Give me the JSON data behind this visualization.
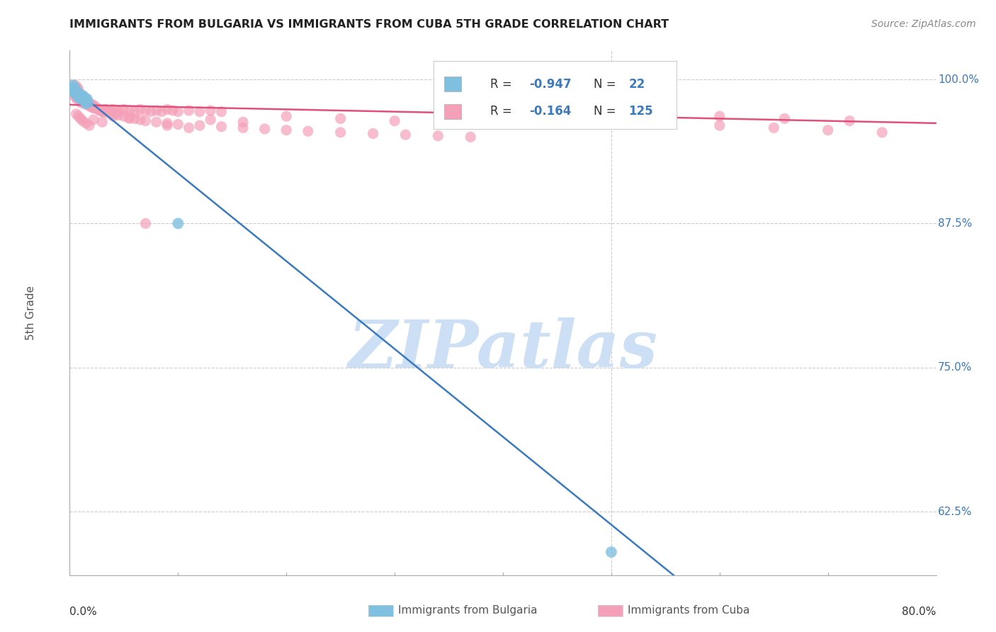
{
  "title": "IMMIGRANTS FROM BULGARIA VS IMMIGRANTS FROM CUBA 5TH GRADE CORRELATION CHART",
  "source": "Source: ZipAtlas.com",
  "ylabel": "5th Grade",
  "yticks": [
    0.625,
    0.75,
    0.875,
    1.0
  ],
  "ytick_labels": [
    "62.5%",
    "75.0%",
    "87.5%",
    "100.0%"
  ],
  "ymin": 0.57,
  "ymax": 1.025,
  "xmin": 0.0,
  "xmax": 0.8,
  "bulgaria_color": "#7fbfdf",
  "cuba_color": "#f4a0b8",
  "bulgaria_line_color": "#3a7abf",
  "cuba_line_color": "#e0507a",
  "bulgaria_R": -0.947,
  "bulgaria_N": 22,
  "cuba_R": -0.164,
  "cuba_N": 125,
  "watermark_text": "ZIPatlas",
  "watermark_color": "#ccdff5",
  "bulgaria_line_x0": 0.001,
  "bulgaria_line_y0": 0.994,
  "bulgaria_line_x1": 0.56,
  "bulgaria_line_y1": 0.568,
  "cuba_line_x0": 0.0,
  "cuba_line_y0": 0.978,
  "cuba_line_x1": 0.8,
  "cuba_line_y1": 0.962,
  "bulgaria_scatter_x": [
    0.003,
    0.004,
    0.004,
    0.005,
    0.005,
    0.006,
    0.006,
    0.007,
    0.007,
    0.008,
    0.008,
    0.009,
    0.01,
    0.011,
    0.012,
    0.013,
    0.014,
    0.015,
    0.016,
    0.017,
    0.1,
    0.5
  ],
  "bulgaria_scatter_y": [
    0.995,
    0.993,
    0.99,
    0.992,
    0.988,
    0.99,
    0.987,
    0.989,
    0.986,
    0.988,
    0.985,
    0.984,
    0.983,
    0.985,
    0.986,
    0.982,
    0.984,
    0.979,
    0.983,
    0.98,
    0.875,
    0.59
  ],
  "cuba_scatter_x": [
    0.003,
    0.004,
    0.005,
    0.005,
    0.006,
    0.006,
    0.007,
    0.007,
    0.008,
    0.009,
    0.01,
    0.01,
    0.011,
    0.012,
    0.013,
    0.014,
    0.015,
    0.016,
    0.017,
    0.018,
    0.019,
    0.02,
    0.021,
    0.022,
    0.023,
    0.025,
    0.027,
    0.029,
    0.031,
    0.033,
    0.035,
    0.037,
    0.04,
    0.043,
    0.046,
    0.05,
    0.055,
    0.06,
    0.065,
    0.07,
    0.075,
    0.08,
    0.085,
    0.09,
    0.095,
    0.1,
    0.11,
    0.12,
    0.13,
    0.14,
    0.005,
    0.007,
    0.008,
    0.009,
    0.01,
    0.011,
    0.012,
    0.013,
    0.014,
    0.015,
    0.016,
    0.017,
    0.018,
    0.019,
    0.02,
    0.022,
    0.024,
    0.026,
    0.028,
    0.03,
    0.035,
    0.04,
    0.045,
    0.05,
    0.055,
    0.06,
    0.065,
    0.07,
    0.08,
    0.09,
    0.1,
    0.12,
    0.14,
    0.16,
    0.18,
    0.2,
    0.22,
    0.25,
    0.28,
    0.31,
    0.34,
    0.37,
    0.4,
    0.45,
    0.5,
    0.55,
    0.6,
    0.65,
    0.7,
    0.75,
    0.006,
    0.008,
    0.01,
    0.012,
    0.015,
    0.018,
    0.022,
    0.03,
    0.04,
    0.055,
    0.07,
    0.09,
    0.11,
    0.13,
    0.16,
    0.2,
    0.25,
    0.3,
    0.35,
    0.42,
    0.48,
    0.54,
    0.6,
    0.66,
    0.72
  ],
  "cuba_scatter_y": [
    0.99,
    0.988,
    0.985,
    0.992,
    0.987,
    0.984,
    0.99,
    0.983,
    0.988,
    0.986,
    0.985,
    0.98,
    0.984,
    0.982,
    0.979,
    0.983,
    0.981,
    0.978,
    0.98,
    0.977,
    0.979,
    0.976,
    0.978,
    0.975,
    0.977,
    0.975,
    0.974,
    0.973,
    0.972,
    0.974,
    0.973,
    0.972,
    0.974,
    0.973,
    0.972,
    0.974,
    0.973,
    0.972,
    0.974,
    0.973,
    0.972,
    0.973,
    0.972,
    0.974,
    0.973,
    0.972,
    0.973,
    0.972,
    0.973,
    0.972,
    0.995,
    0.993,
    0.991,
    0.988,
    0.987,
    0.986,
    0.985,
    0.984,
    0.983,
    0.982,
    0.981,
    0.98,
    0.979,
    0.978,
    0.977,
    0.976,
    0.975,
    0.974,
    0.973,
    0.972,
    0.971,
    0.97,
    0.969,
    0.968,
    0.967,
    0.966,
    0.965,
    0.964,
    0.963,
    0.962,
    0.961,
    0.96,
    0.959,
    0.958,
    0.957,
    0.956,
    0.955,
    0.954,
    0.953,
    0.952,
    0.951,
    0.95,
    0.968,
    0.966,
    0.964,
    0.962,
    0.96,
    0.958,
    0.956,
    0.954,
    0.97,
    0.968,
    0.966,
    0.964,
    0.962,
    0.96,
    0.965,
    0.963,
    0.968,
    0.966,
    0.875,
    0.96,
    0.958,
    0.965,
    0.963,
    0.968,
    0.966,
    0.964,
    0.962,
    0.967,
    0.965,
    0.963,
    0.968,
    0.966,
    0.964
  ]
}
